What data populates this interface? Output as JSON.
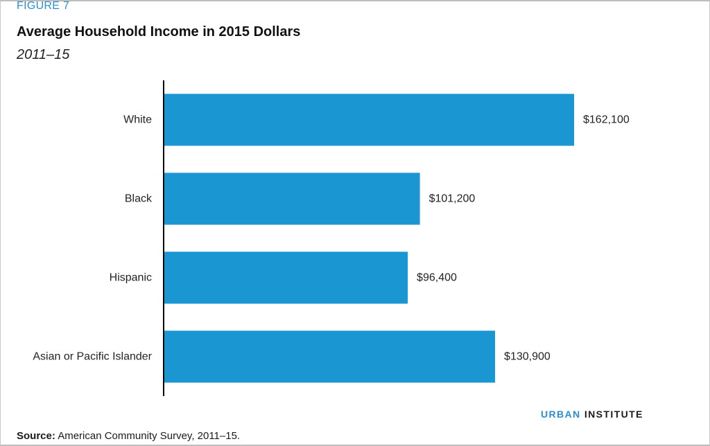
{
  "figure_label": "FIGURE 7",
  "logo": {
    "urban": "URBAN",
    "institute": "INSTITUTE"
  },
  "source": {
    "label": "Source:",
    "text": "American Community Survey, 2011–15."
  },
  "colors": {
    "bar": "#1a96d3",
    "axis": "#000000",
    "accent": "#2a8fcc"
  },
  "chart_data": {
    "type": "bar",
    "orientation": "horizontal",
    "title": "Average Household Income in 2015 Dollars",
    "subtitle": "2011–15",
    "categories": [
      "White",
      "Black",
      "Hispanic",
      "Asian or Pacific Islander"
    ],
    "values": [
      162100,
      101200,
      96400,
      130900
    ],
    "data_labels": [
      "$162,100",
      "$101,200",
      "$96,400",
      "$130,900"
    ],
    "xlim": [
      0,
      162100
    ],
    "grid": false,
    "legend": "none"
  }
}
